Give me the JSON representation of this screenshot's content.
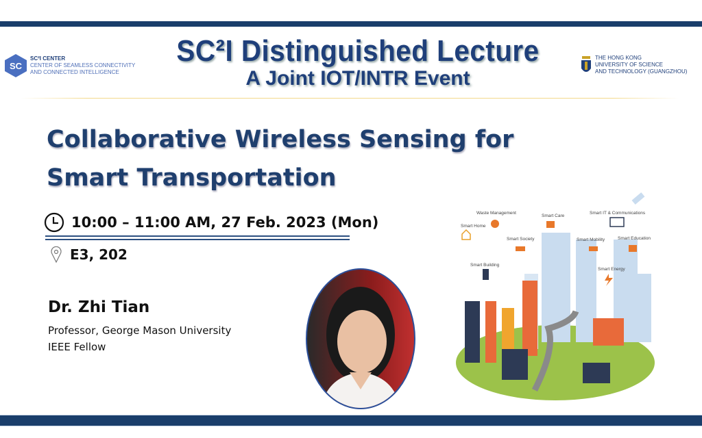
{
  "header": {
    "title": "SC²I Distinguished Lecture",
    "subtitle": "A Joint IOT/INTR Event",
    "left_logo": {
      "line1": "SC²I CENTER",
      "line2": "CENTER OF SEAMLESS CONNECTIVITY",
      "line3": "AND CONNECTED INTELLIGENCE"
    },
    "right_logo": {
      "line1": "THE HONG KONG",
      "line2": "UNIVERSITY OF SCIENCE",
      "line3": "AND TECHNOLOGY (GUANGZHOU)"
    }
  },
  "talk": {
    "title": "Collaborative Wireless Sensing for Smart Transportation",
    "time": "10:00 – 11:00 AM, 27 Feb. 2023 (Mon)",
    "location": "E3, 202",
    "time_icon": "clock-icon",
    "location_icon": "map-pin-icon"
  },
  "speaker": {
    "name": "Dr. Zhi Tian",
    "position": "Professor, George Mason University",
    "honor": "IEEE Fellow"
  },
  "illustration": {
    "labels": [
      "Waste Management",
      "Smart Care",
      "Smart IT & Communications",
      "Smart Home",
      "Smart Society",
      "Smart Mobility",
      "Smart Education",
      "Smart Building",
      "Smart Energy"
    ]
  },
  "colors": {
    "brand": "#1a3e6b",
    "title": "#1f3f7a",
    "accent_orange": "#e8782a"
  }
}
